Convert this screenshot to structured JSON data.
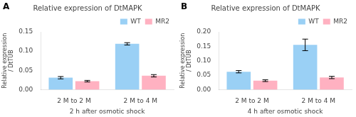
{
  "chart_data": [
    {
      "type": "bar",
      "title": "Relative expression of DtMAPK",
      "annotations": [
        "A"
      ],
      "xlabel": "2 h after osmotic shock",
      "ylabel": [
        "Relative expression",
        "/ DtTUB"
      ],
      "categories": [
        "2 M to 2 M",
        "2 M to 4 M"
      ],
      "series": [
        {
          "name": "WT",
          "values": [
            0.031,
            0.119
          ],
          "errors": [
            0.003,
            0.003
          ]
        },
        {
          "name": "MR2",
          "values": [
            0.022,
            0.036
          ],
          "errors": [
            0.002,
            0.003
          ]
        }
      ],
      "ylim": [
        0,
        0.15
      ],
      "yticks": [
        {
          "value": 0,
          "label": "0.00"
        },
        0.05,
        {
          "value": 0.1,
          "label": "0.10"
        },
        0.15
      ],
      "grid": false,
      "legend": "upper right"
    },
    {
      "type": "bar",
      "title": "Relative expression of DtMAPK",
      "annotations": [
        "B"
      ],
      "xlabel": "4 h after osmotic shock",
      "ylabel": [
        "Relative expression",
        "/ DtTUB"
      ],
      "categories": [
        "2 M to 2 M",
        "2 M to 4 M"
      ],
      "series": [
        {
          "name": "WT",
          "values": [
            0.062,
            0.155
          ],
          "errors": [
            0.004,
            0.02
          ]
        },
        {
          "name": "MR2",
          "values": [
            0.031,
            0.042
          ],
          "errors": [
            0.003,
            0.004
          ]
        }
      ],
      "ylim": [
        0,
        0.2
      ],
      "yticks": [
        {
          "value": 0,
          "label": "0.00"
        },
        0.05,
        {
          "value": 0.1,
          "label": "0.10"
        },
        0.15,
        {
          "value": 0.2,
          "label": "0.20"
        }
      ],
      "grid": false,
      "legend": "upper right"
    }
  ]
}
